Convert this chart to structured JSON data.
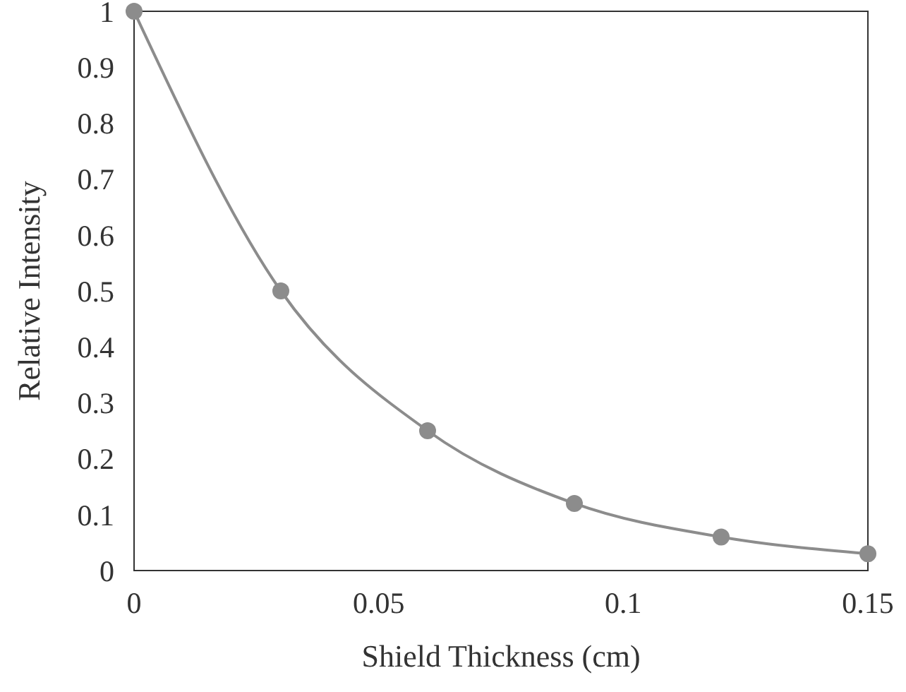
{
  "chart_data": {
    "type": "line",
    "xlabel": "Shield Thickness (cm)",
    "ylabel": "Relative Intensity",
    "x": [
      0,
      0.03,
      0.06,
      0.09,
      0.12,
      0.15
    ],
    "series": [
      {
        "color": "#8c8c8c",
        "values": [
          1,
          0.5,
          0.25,
          0.12,
          0.06,
          0.03
        ]
      }
    ],
    "xlim": [
      0,
      0.15
    ],
    "xticks": [
      0,
      0.05,
      0.1,
      0.15
    ],
    "ylim": [
      0,
      1
    ],
    "yticks": [
      0,
      0.1,
      0.2,
      0.3,
      0.4,
      0.5,
      0.6,
      0.7,
      0.8,
      0.9,
      1
    ],
    "grid": false,
    "marker": "circle",
    "line_style": "solid"
  }
}
